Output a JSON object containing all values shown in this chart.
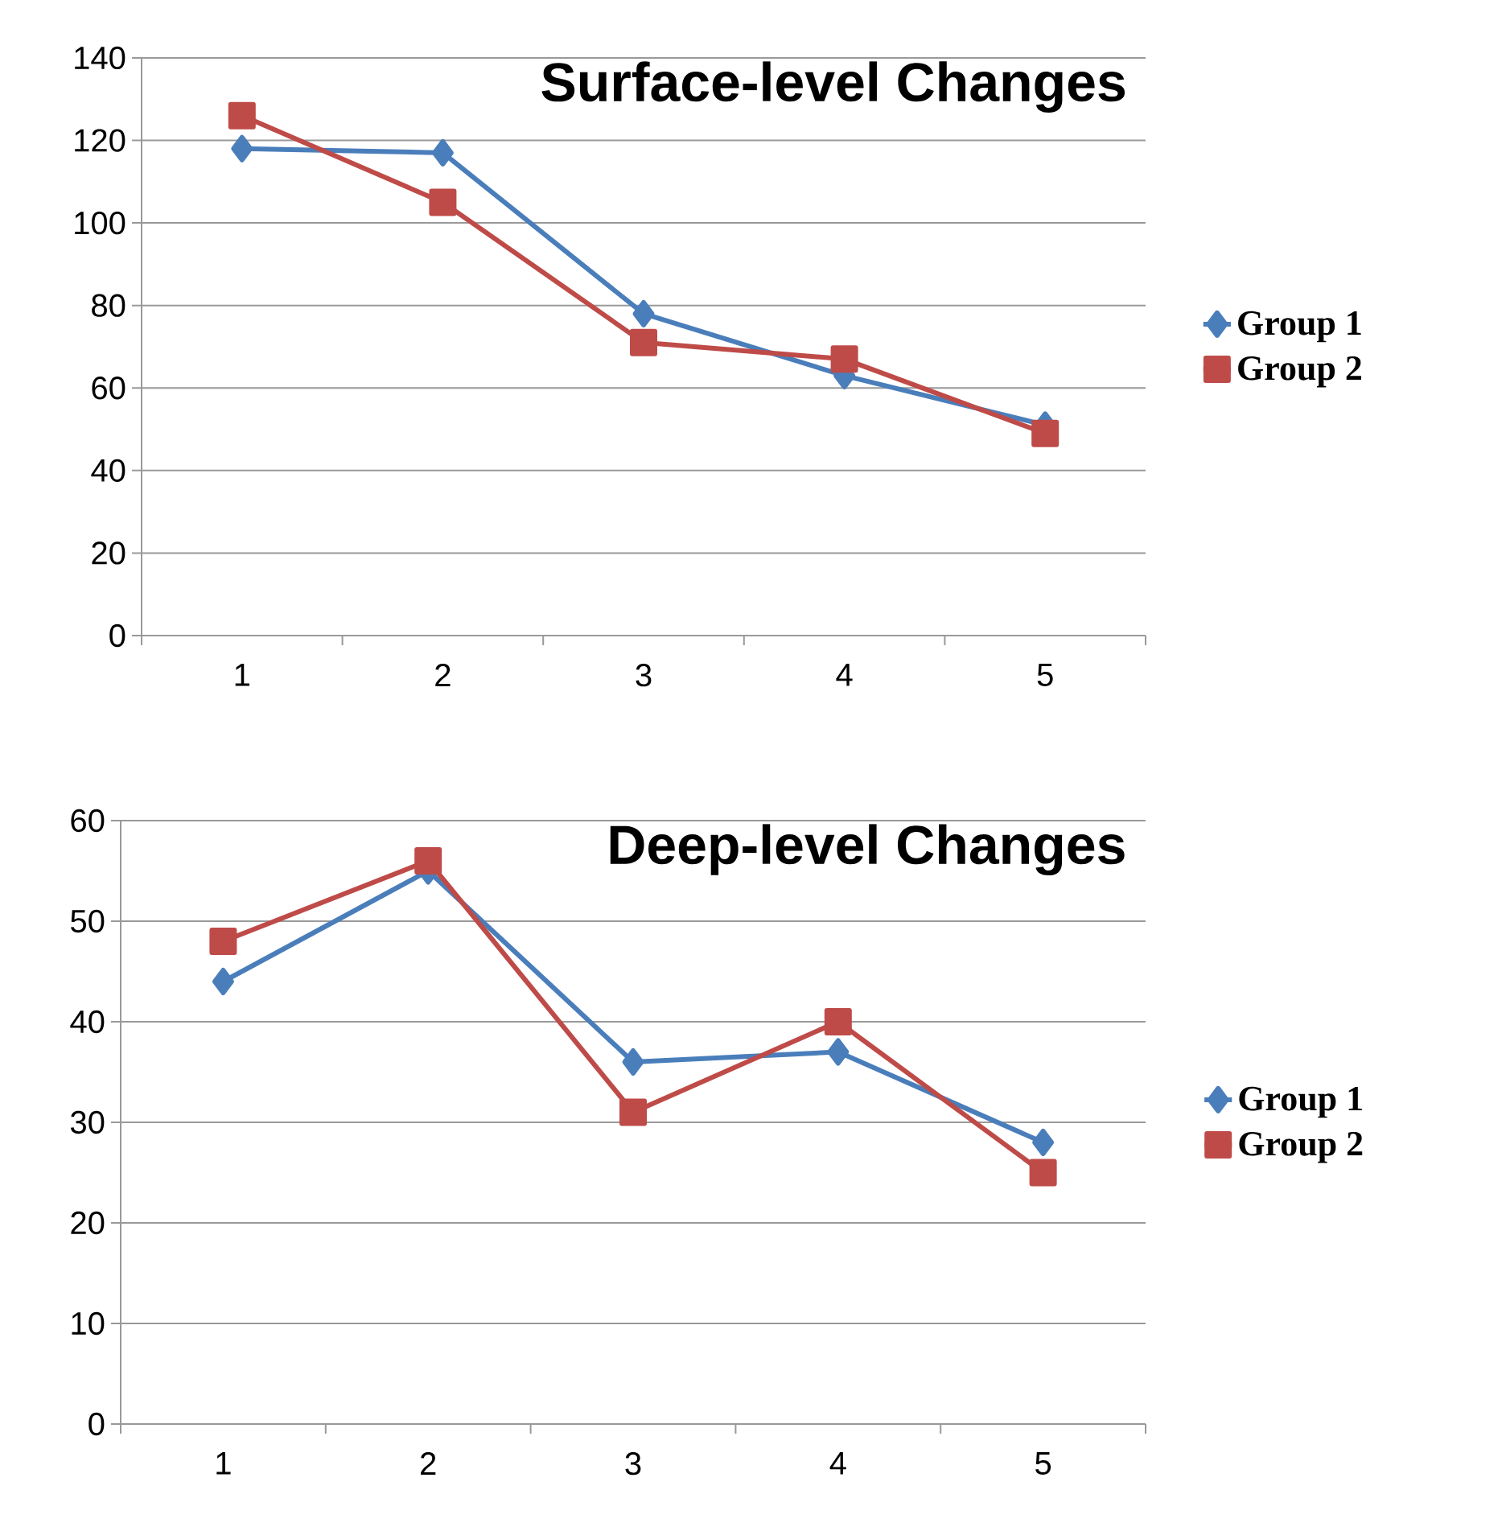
{
  "chart_data": [
    {
      "type": "line",
      "title": "Surface-level Changes",
      "categories": [
        "1",
        "2",
        "3",
        "4",
        "5"
      ],
      "series": [
        {
          "name": "Group 1",
          "color": "#4a7ebb",
          "marker": "diamond",
          "values": [
            118,
            117,
            78,
            63,
            51
          ]
        },
        {
          "name": "Group 2",
          "color": "#be4b48",
          "marker": "square",
          "values": [
            126,
            105,
            71,
            67,
            49
          ]
        }
      ],
      "ylim": [
        0,
        140
      ],
      "yticks": [
        0,
        20,
        40,
        60,
        80,
        100,
        120,
        140
      ],
      "grid": "y",
      "legend": "right"
    },
    {
      "type": "line",
      "title": "Deep-level Changes",
      "categories": [
        "1",
        "2",
        "3",
        "4",
        "5"
      ],
      "series": [
        {
          "name": "Group 1",
          "color": "#4a7ebb",
          "marker": "diamond",
          "values": [
            44,
            55,
            36,
            37,
            28
          ]
        },
        {
          "name": "Group 2",
          "color": "#be4b48",
          "marker": "square",
          "values": [
            48,
            56,
            31,
            40,
            25
          ]
        }
      ],
      "ylim": [
        0,
        60
      ],
      "yticks": [
        0,
        10,
        20,
        30,
        40,
        50,
        60
      ],
      "grid": "y",
      "legend": "right"
    }
  ]
}
